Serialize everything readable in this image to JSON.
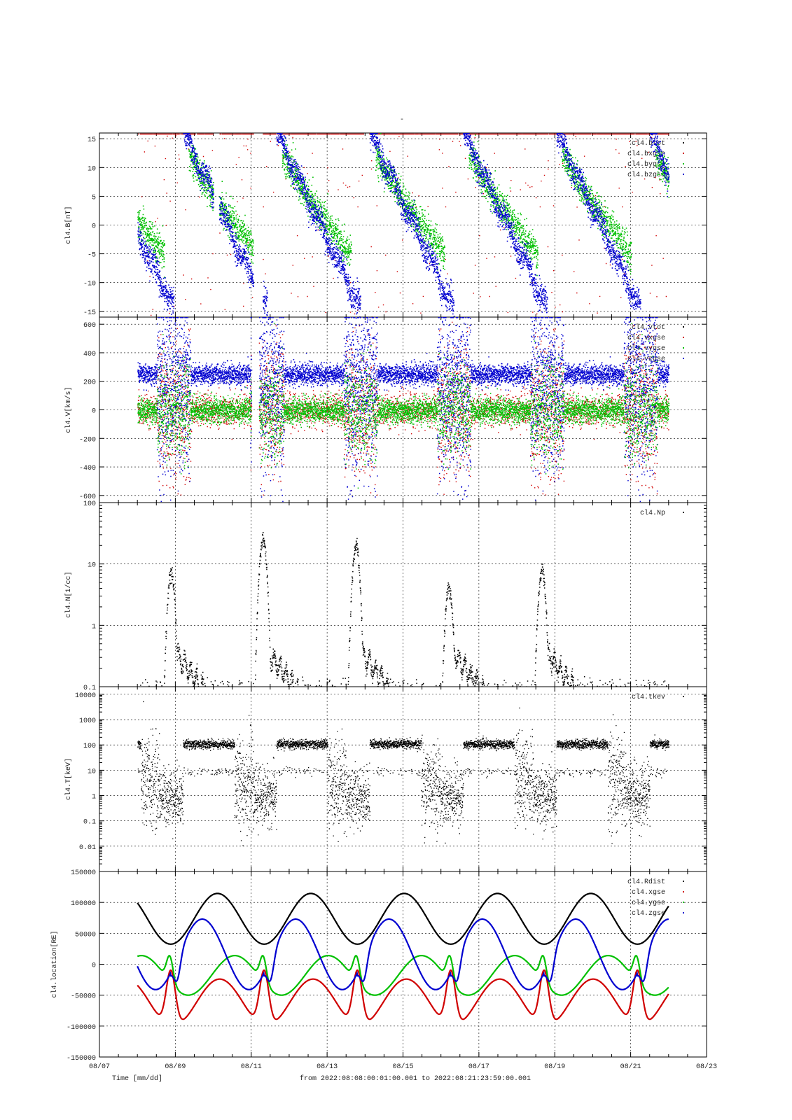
{
  "page": {
    "title": "-"
  },
  "footer": {
    "xlabel": "Time [mm/dd]",
    "range": "from 2022:08:08:00:01:00.001  to  2022:08:21:23:59:00.001"
  },
  "colors": {
    "black": "#000000",
    "red": "#d00000",
    "green": "#00c000",
    "blue": "#0000d0"
  },
  "chart_data": [
    {
      "type": "scatter",
      "id": "B",
      "ylabel": "cl4.B[nT]",
      "ylim": [
        -16,
        16
      ],
      "yticks": [
        15,
        10,
        5,
        0,
        -5,
        -10,
        -15
      ],
      "yscale": "linear",
      "x": [
        "08/07",
        "08/09",
        "08/11",
        "08/13",
        "08/15",
        "08/17",
        "08/19",
        "08/21",
        "08/23"
      ],
      "grid": true,
      "legend_position": "top-right",
      "series": [
        {
          "name": "cl4.btot",
          "color": "black"
        },
        {
          "name": "cl4.bxgse",
          "color": "red"
        },
        {
          "name": "cl4.bygse",
          "color": "green"
        },
        {
          "name": "cl4.bzgse",
          "color": "blue"
        }
      ]
    },
    {
      "type": "scatter",
      "id": "V",
      "ylabel": "cl4.V[km/s]",
      "ylim": [
        -650,
        650
      ],
      "yticks": [
        600,
        400,
        200,
        0,
        -200,
        -400,
        -600
      ],
      "yscale": "linear",
      "grid": true,
      "legend_position": "top-right",
      "series": [
        {
          "name": "cl4.vtot",
          "color": "black"
        },
        {
          "name": "cl4.vxgse",
          "color": "red"
        },
        {
          "name": "cl4.vygse",
          "color": "green"
        },
        {
          "name": "cl4.vzgse",
          "color": "blue"
        }
      ]
    },
    {
      "type": "scatter",
      "id": "N",
      "ylabel": "cl4.N[1/cc]",
      "ylim": [
        0.1,
        100
      ],
      "yticks": [
        100,
        10,
        1,
        0.1
      ],
      "yscale": "log",
      "grid": true,
      "legend_position": "top-right",
      "series": [
        {
          "name": "cl4.Np",
          "color": "black"
        }
      ]
    },
    {
      "type": "scatter",
      "id": "T",
      "ylabel": "cl4.T[keV]",
      "ylim": [
        0.001,
        20000
      ],
      "yticks": [
        10000,
        1000,
        100,
        10,
        1,
        0.1,
        0.01
      ],
      "yscale": "log",
      "grid": true,
      "legend_position": "top-right",
      "series": [
        {
          "name": "cl4.tkev",
          "color": "black"
        }
      ]
    },
    {
      "type": "line",
      "id": "R",
      "ylabel": "cl4.location[RE]",
      "ylim": [
        -150000,
        150000
      ],
      "yticks": [
        150000,
        100000,
        50000,
        0,
        -50000,
        -100000,
        -150000
      ],
      "yscale": "linear",
      "grid": true,
      "legend_position": "top-right",
      "series": [
        {
          "name": "cl4.Rdist",
          "color": "black"
        },
        {
          "name": "cl4.xgse",
          "color": "red"
        },
        {
          "name": "cl4.ygse",
          "color": "green"
        },
        {
          "name": "cl4.zgse",
          "color": "blue"
        }
      ]
    }
  ]
}
